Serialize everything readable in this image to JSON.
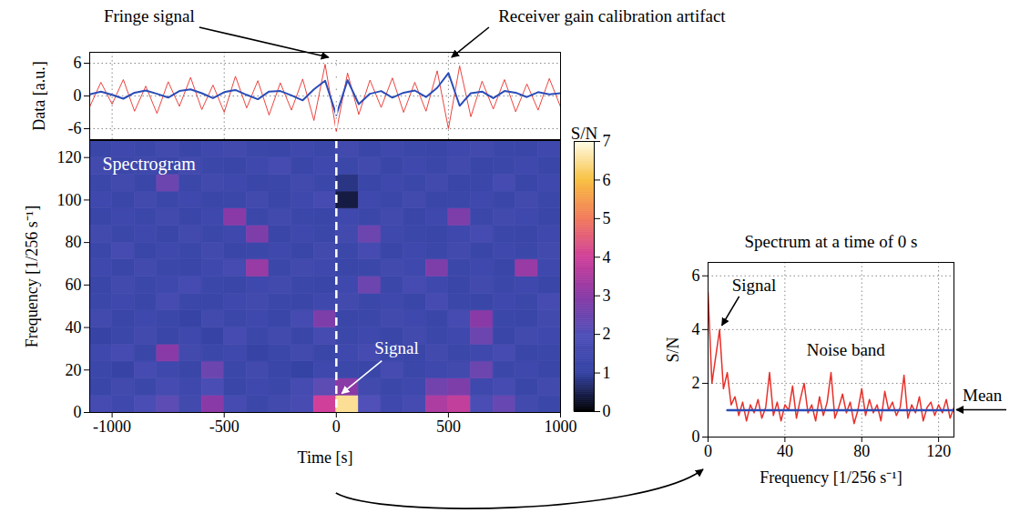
{
  "chart_data": [
    {
      "type": "line",
      "ylabel": "Data [a.u.]",
      "xlim": [
        -1100,
        1000
      ],
      "ylim": [
        -8,
        8
      ],
      "xticks": [
        -1000,
        -500,
        0,
        500,
        1000
      ],
      "yticks": [
        -6,
        0,
        6
      ],
      "grid": true,
      "tick_labels": "y",
      "x": [
        -1100,
        -1050,
        -1000,
        -950,
        -900,
        -850,
        -800,
        -750,
        -700,
        -650,
        -600,
        -550,
        -500,
        -450,
        -400,
        -350,
        -300,
        -250,
        -200,
        -150,
        -100,
        -50,
        0,
        50,
        100,
        150,
        200,
        250,
        300,
        350,
        400,
        450,
        500,
        550,
        600,
        650,
        700,
        750,
        800,
        850,
        900,
        950,
        1000
      ],
      "series": [
        {
          "color": "#e8302a",
          "values": [
            -2.0,
            2.5,
            -1.5,
            3.0,
            -2.8,
            1.8,
            -3.2,
            2.6,
            -1.9,
            3.4,
            -2.5,
            2.0,
            -3.0,
            3.6,
            -2.2,
            2.8,
            -3.5,
            2.4,
            -2.6,
            3.1,
            -4.5,
            5.8,
            -6.5,
            4.2,
            -3.4,
            2.9,
            -2.1,
            3.3,
            -3.0,
            2.5,
            -2.8,
            4.6,
            -6.0,
            5.5,
            -3.8,
            2.7,
            -2.4,
            3.0,
            -2.9,
            2.2,
            -2.6,
            3.2,
            -2.0
          ]
        },
        {
          "color": "#2a4db8",
          "values": [
            0.3,
            0.8,
            0.2,
            -0.5,
            0.6,
            1.0,
            0.4,
            -0.3,
            0.9,
            1.2,
            0.5,
            -0.4,
            0.7,
            1.1,
            0.2,
            -0.6,
            0.8,
            0.9,
            0.1,
            -0.8,
            1.2,
            2.8,
            -3.5,
            2.9,
            -1.5,
            0.4,
            0.9,
            -0.3,
            0.6,
            1.0,
            -0.2,
            1.5,
            4.2,
            -1.8,
            0.5,
            0.8,
            -0.4,
            0.9,
            0.6,
            -0.2,
            0.7,
            0.3,
            0.5
          ]
        }
      ],
      "vline": {
        "x": 0,
        "line_style": "dashed"
      },
      "annotations": [
        {
          "text": "Fringe signal",
          "x": 0,
          "y": 7
        },
        {
          "text": "Receiver gain calibration artifact",
          "x": 500,
          "y": 7
        }
      ]
    },
    {
      "type": "heatmap",
      "title": "Spectrogram",
      "xlabel": "Time [s]",
      "ylabel": "Frequency [1/256 s⁻¹]",
      "xlim": [
        -1100,
        1000
      ],
      "ylim": [
        0,
        128
      ],
      "xticks": [
        -1000,
        -500,
        0,
        500,
        1000
      ],
      "yticks": [
        0,
        20,
        40,
        60,
        80,
        100,
        120
      ],
      "x": [
        -1100,
        -1000,
        -900,
        -800,
        -700,
        -600,
        -500,
        -400,
        -300,
        -200,
        -100,
        0,
        100,
        200,
        300,
        400,
        500,
        600,
        700,
        800,
        900,
        1000
      ],
      "y": [
        0,
        8,
        16,
        24,
        32,
        40,
        48,
        56,
        64,
        72,
        80,
        88,
        96,
        104,
        112,
        120,
        128
      ],
      "z": [
        [
          1.6,
          1.4,
          1.8,
          2.2,
          1.5,
          3.0,
          1.6,
          1.3,
          1.5,
          1.7,
          4.0,
          6.5,
          2.0,
          1.4,
          1.6,
          3.5,
          3.8,
          1.8,
          2.4,
          1.5,
          1.3
        ],
        [
          1.2,
          1.5,
          1.3,
          1.6,
          1.4,
          1.8,
          1.2,
          1.4,
          1.3,
          1.6,
          2.2,
          3.0,
          1.5,
          1.3,
          1.4,
          2.6,
          2.8,
          1.4,
          1.6,
          1.2,
          1.5
        ],
        [
          1.3,
          1.1,
          1.6,
          1.4,
          1.2,
          2.5,
          1.3,
          1.5,
          1.2,
          1.0,
          1.4,
          1.3,
          1.2,
          1.6,
          1.3,
          1.4,
          1.5,
          2.5,
          1.3,
          1.4,
          1.2
        ],
        [
          1.4,
          1.6,
          1.2,
          3.0,
          1.5,
          1.3,
          1.4,
          1.1,
          1.3,
          1.5,
          1.2,
          1.4,
          1.6,
          1.3,
          1.2,
          1.5,
          1.3,
          1.4,
          1.6,
          1.2,
          1.3
        ],
        [
          1.1,
          1.3,
          1.5,
          1.2,
          1.4,
          1.1,
          1.6,
          1.3,
          1.5,
          1.2,
          1.6,
          1.3,
          1.4,
          1.2,
          1.5,
          1.3,
          1.4,
          2.5,
          1.2,
          1.5,
          1.4
        ],
        [
          1.5,
          1.2,
          1.4,
          1.3,
          1.1,
          1.5,
          1.3,
          1.4,
          1.2,
          1.6,
          2.8,
          1.2,
          1.3,
          1.5,
          1.4,
          1.2,
          1.6,
          3.0,
          1.3,
          1.2,
          1.5
        ],
        [
          1.3,
          1.4,
          1.2,
          1.6,
          1.3,
          1.2,
          1.4,
          1.5,
          1.3,
          1.2,
          1.4,
          1.5,
          1.3,
          1.4,
          1.2,
          1.6,
          1.3,
          1.2,
          1.4,
          1.3,
          1.6
        ],
        [
          1.2,
          1.5,
          1.3,
          1.4,
          1.6,
          1.3,
          1.2,
          1.4,
          1.5,
          1.3,
          1.2,
          1.4,
          2.5,
          1.3,
          1.6,
          1.4,
          1.2,
          1.5,
          1.3,
          1.4,
          1.2
        ],
        [
          1.4,
          1.2,
          1.5,
          1.3,
          1.2,
          1.4,
          1.6,
          3.2,
          1.3,
          1.5,
          1.4,
          1.2,
          1.3,
          1.5,
          1.4,
          2.8,
          1.3,
          1.4,
          1.2,
          3.2,
          1.4
        ],
        [
          1.3,
          1.6,
          1.2,
          1.4,
          1.3,
          1.5,
          1.2,
          1.3,
          1.4,
          1.2,
          1.5,
          1.3,
          1.6,
          1.2,
          1.4,
          1.3,
          1.5,
          1.2,
          1.4,
          1.3,
          1.5
        ],
        [
          1.5,
          1.3,
          1.4,
          1.2,
          1.5,
          1.3,
          1.4,
          2.8,
          1.2,
          1.4,
          1.3,
          1.5,
          2.5,
          1.4,
          1.3,
          1.2,
          1.4,
          1.6,
          1.3,
          1.2,
          1.4
        ],
        [
          1.2,
          1.4,
          1.3,
          1.5,
          1.2,
          1.4,
          3.0,
          1.3,
          1.5,
          1.3,
          1.2,
          1.4,
          1.3,
          1.5,
          1.2,
          1.4,
          2.8,
          1.3,
          1.5,
          1.4,
          1.2
        ],
        [
          1.4,
          1.2,
          1.5,
          1.3,
          1.4,
          1.2,
          1.3,
          1.5,
          1.2,
          1.4,
          1.6,
          0.4,
          1.4,
          1.3,
          1.5,
          1.2,
          1.3,
          1.4,
          1.2,
          1.5,
          1.3
        ],
        [
          1.3,
          1.5,
          1.2,
          2.5,
          1.3,
          1.5,
          1.4,
          1.2,
          1.3,
          1.5,
          1.3,
          0.8,
          1.2,
          1.4,
          1.3,
          1.5,
          1.2,
          1.3,
          1.6,
          1.2,
          1.4
        ],
        [
          1.5,
          1.3,
          1.4,
          1.2,
          1.5,
          1.3,
          1.2,
          1.4,
          1.6,
          1.2,
          1.4,
          1.3,
          1.5,
          1.2,
          1.4,
          1.3,
          1.5,
          1.2,
          1.3,
          1.4,
          1.2
        ],
        [
          1.2,
          1.4,
          1.3,
          1.5,
          1.2,
          1.4,
          1.5,
          1.3,
          1.2,
          1.4,
          1.3,
          1.5,
          1.2,
          1.4,
          1.3,
          1.2,
          1.4,
          1.5,
          1.3,
          1.2,
          1.4
        ]
      ],
      "colorbar": {
        "label": "S/N",
        "range": [
          0,
          7
        ],
        "ticks": [
          0,
          1,
          2,
          3,
          4,
          5,
          6,
          7
        ]
      },
      "vline": {
        "x": 0,
        "line_style": "dashed"
      },
      "annotations": [
        {
          "text": "Signal",
          "x": 10,
          "y": 7
        }
      ]
    },
    {
      "type": "line",
      "title": "Spectrum at a time of 0 s",
      "xlabel": "Frequency [1/256 s⁻¹]",
      "ylabel": "S/N",
      "xlim": [
        0,
        128
      ],
      "ylim": [
        0,
        6.5
      ],
      "xticks": [
        0,
        40,
        80,
        120
      ],
      "yticks": [
        0,
        2,
        4,
        6
      ],
      "grid": true,
      "x": [
        0,
        2,
        4,
        6,
        8,
        10,
        12,
        14,
        16,
        18,
        20,
        22,
        24,
        26,
        28,
        30,
        32,
        34,
        36,
        38,
        40,
        42,
        44,
        46,
        48,
        50,
        52,
        54,
        56,
        58,
        60,
        62,
        64,
        66,
        68,
        70,
        72,
        74,
        76,
        78,
        80,
        82,
        84,
        86,
        88,
        90,
        92,
        94,
        96,
        98,
        100,
        102,
        104,
        106,
        108,
        110,
        112,
        114,
        116,
        118,
        120,
        122,
        124,
        126,
        128
      ],
      "series": [
        {
          "color": "#e8302a",
          "values": [
            5.4,
            2.0,
            3.0,
            4.0,
            1.8,
            2.4,
            1.2,
            1.5,
            0.8,
            1.3,
            0.6,
            1.2,
            0.9,
            1.4,
            0.7,
            1.1,
            2.4,
            0.8,
            1.3,
            0.6,
            1.2,
            1.0,
            1.9,
            0.7,
            1.4,
            2.0,
            0.9,
            1.2,
            0.6,
            1.5,
            0.8,
            1.3,
            2.4,
            0.7,
            1.1,
            1.6,
            0.9,
            1.3,
            0.5,
            1.0,
            1.8,
            0.8,
            1.4,
            0.9,
            1.2,
            0.6,
            1.7,
            1.0,
            1.3,
            0.8,
            1.1,
            2.3,
            0.7,
            1.2,
            0.9,
            1.5,
            0.6,
            1.1,
            1.3,
            0.8,
            1.2,
            0.9,
            1.4,
            0.7,
            1.1
          ]
        }
      ],
      "reference_line": {
        "label": "Mean",
        "y": 1,
        "x": [
          10,
          128
        ],
        "color": "#2a4db8"
      },
      "annotations": [
        {
          "text": "Signal",
          "x": 6,
          "y": 4
        },
        {
          "text": "Noise band",
          "x": 72,
          "y": 3.2
        }
      ]
    }
  ]
}
